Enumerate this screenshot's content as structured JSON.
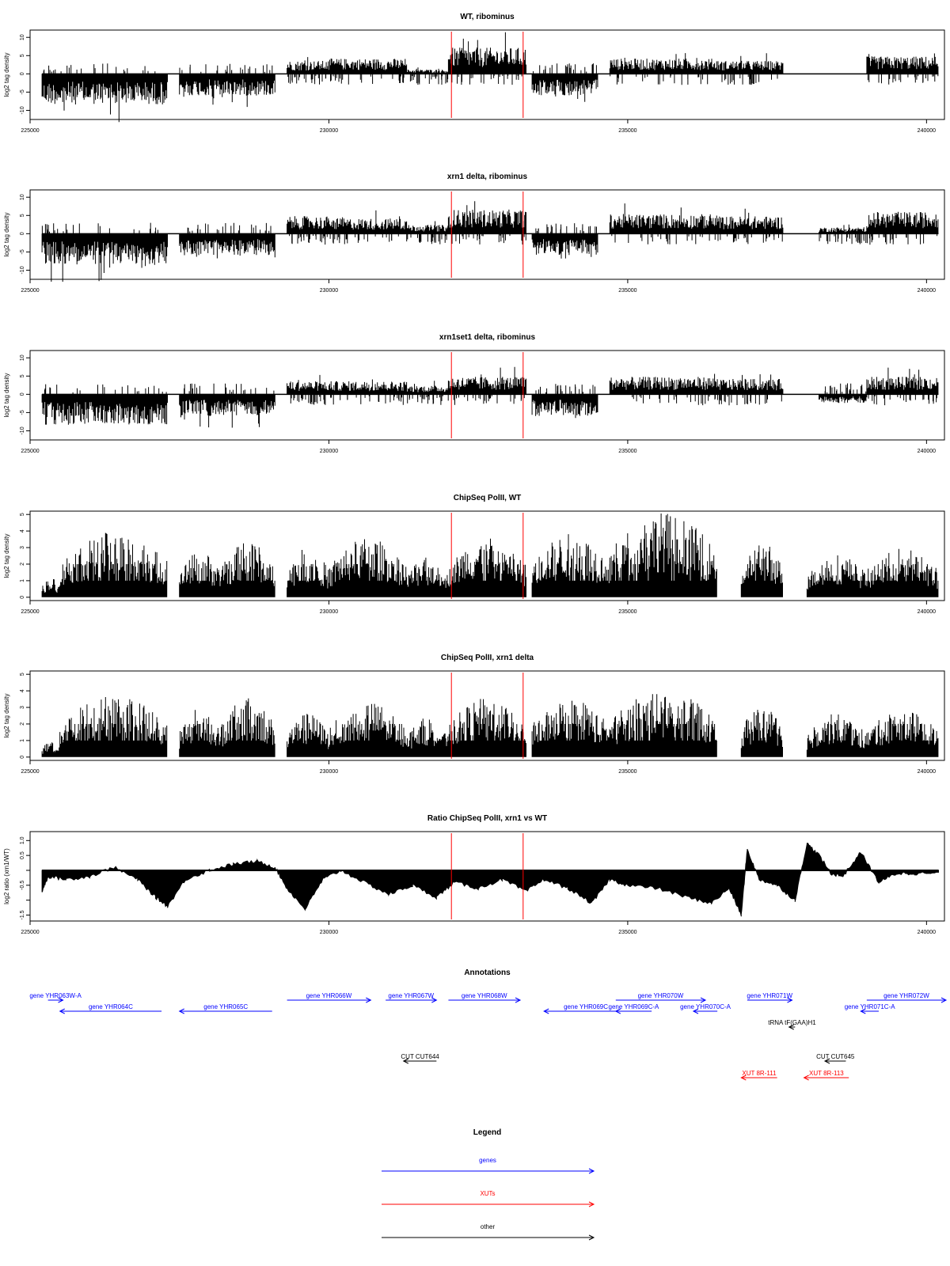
{
  "colors": {
    "marker": "#ff0000",
    "gene": "#0000ff",
    "xut": "#ff0000",
    "other": "#000000",
    "data": "#000000",
    "frame": "#000000"
  },
  "markers": [
    232050,
    233250
  ],
  "chart_data": [
    {
      "type": "bar",
      "title": "WT, ribominus",
      "ylabel": "log2 tag density",
      "xlim": [
        225000,
        240300
      ],
      "ylim": [
        -12.5,
        12
      ],
      "yticks": [
        -10,
        -5,
        0,
        5,
        10
      ],
      "xticks": [
        225000,
        230000,
        235000,
        240000
      ],
      "segments": [
        [
          225200,
          227300,
          -7
        ],
        [
          227500,
          229100,
          -5
        ],
        [
          229300,
          230000,
          3
        ],
        [
          230000,
          231300,
          3.5
        ],
        [
          231300,
          232000,
          1
        ],
        [
          232000,
          233300,
          6
        ],
        [
          233400,
          234500,
          -5
        ],
        [
          234700,
          236500,
          3.5
        ],
        [
          236500,
          237600,
          3
        ],
        [
          239000,
          240200,
          4
        ]
      ]
    },
    {
      "type": "bar",
      "title": "xrn1 delta, ribominus",
      "ylabel": "log2 tag density",
      "xlim": [
        225000,
        240300
      ],
      "ylim": [
        -12.5,
        12
      ],
      "yticks": [
        -10,
        -5,
        0,
        5,
        10
      ],
      "xticks": [
        225000,
        230000,
        235000,
        240000
      ],
      "segments": [
        [
          225200,
          227300,
          -7
        ],
        [
          227500,
          229100,
          -5
        ],
        [
          229300,
          230000,
          4
        ],
        [
          230000,
          231300,
          3.5
        ],
        [
          231300,
          232000,
          2
        ],
        [
          232000,
          233300,
          5.5
        ],
        [
          233400,
          234500,
          -5
        ],
        [
          234700,
          236500,
          4.5
        ],
        [
          236500,
          237600,
          4
        ],
        [
          238200,
          239000,
          1.5
        ],
        [
          239000,
          240200,
          5
        ]
      ]
    },
    {
      "type": "bar",
      "title": "xrn1set1 delta, ribominus",
      "ylabel": "log2 tag density",
      "xlim": [
        225000,
        240300
      ],
      "ylim": [
        -12.5,
        12
      ],
      "yticks": [
        -10,
        -5,
        0,
        5,
        10
      ],
      "xticks": [
        225000,
        230000,
        235000,
        240000
      ],
      "segments": [
        [
          225200,
          227300,
          -7
        ],
        [
          227500,
          229100,
          -5
        ],
        [
          229300,
          230000,
          3
        ],
        [
          230000,
          231300,
          3
        ],
        [
          231300,
          232000,
          2
        ],
        [
          232000,
          233300,
          4
        ],
        [
          233400,
          234500,
          -5
        ],
        [
          234700,
          236500,
          4
        ],
        [
          236500,
          237600,
          3.5
        ],
        [
          238200,
          239000,
          -2
        ],
        [
          239000,
          240200,
          4
        ]
      ]
    },
    {
      "type": "bar",
      "title": "ChipSeq PolII, WT",
      "ylabel": "log2 tag density",
      "xlim": [
        225000,
        240300
      ],
      "ylim": [
        -0.2,
        5.2
      ],
      "yticks": [
        0,
        1,
        2,
        3,
        4,
        5
      ],
      "xticks": [
        225000,
        230000,
        235000,
        240000
      ],
      "segments": [
        [
          225200,
          225500,
          1
        ],
        [
          225500,
          227300,
          3.3
        ],
        [
          227500,
          228200,
          2.3
        ],
        [
          228200,
          229100,
          2.8
        ],
        [
          229300,
          230000,
          2.5
        ],
        [
          230000,
          231300,
          3
        ],
        [
          231300,
          232000,
          2
        ],
        [
          232000,
          233300,
          3
        ],
        [
          233400,
          234700,
          3.2
        ],
        [
          234700,
          236500,
          4.3
        ],
        [
          236900,
          237600,
          2.8
        ],
        [
          238000,
          239000,
          2.2
        ],
        [
          239000,
          240200,
          2.5
        ]
      ]
    },
    {
      "type": "bar",
      "title": "ChipSeq PolII, xrn1 delta",
      "ylabel": "log2 tag density",
      "xlim": [
        225000,
        240300
      ],
      "ylim": [
        -0.2,
        5.2
      ],
      "yticks": [
        0,
        1,
        2,
        3,
        4,
        5
      ],
      "xticks": [
        225000,
        230000,
        235000,
        240000
      ],
      "segments": [
        [
          225200,
          225500,
          0.8
        ],
        [
          225500,
          227300,
          3.2
        ],
        [
          227500,
          228200,
          2.5
        ],
        [
          228200,
          229100,
          3
        ],
        [
          229300,
          230000,
          2.2
        ],
        [
          230000,
          231300,
          2.8
        ],
        [
          231300,
          232000,
          2
        ],
        [
          232000,
          233300,
          3
        ],
        [
          233400,
          234700,
          3
        ],
        [
          234700,
          236500,
          3.4
        ],
        [
          236900,
          237600,
          2.6
        ],
        [
          238000,
          239000,
          2.2
        ],
        [
          239000,
          240200,
          2.4
        ]
      ]
    },
    {
      "type": "area",
      "title": "Ratio ChipSeq PolII, xrn1 vs WT",
      "ylabel": "log2 ratio (xrn1/WT)",
      "xlim": [
        225000,
        240300
      ],
      "ylim": [
        -1.7,
        1.3
      ],
      "yticks": [
        -1.5,
        -1,
        -0.5,
        0,
        0.5,
        1
      ],
      "ytick_labels": [
        "-1.5",
        "",
        "-0.5",
        "",
        "0.5",
        "1.0"
      ],
      "xticks": [
        225000,
        230000,
        235000,
        240000
      ],
      "x": [
        225200,
        225300,
        225600,
        226000,
        226400,
        226800,
        227100,
        227300,
        227600,
        228000,
        228400,
        228800,
        229100,
        229300,
        229600,
        229900,
        230200,
        230600,
        231000,
        231400,
        231800,
        232100,
        232500,
        232900,
        233300,
        233600,
        234000,
        234400,
        234700,
        235000,
        235500,
        236000,
        236400,
        236700,
        236900,
        237000,
        237200,
        237500,
        237800,
        238000,
        238200,
        238400,
        238600,
        238900,
        239200,
        239500,
        239800,
        240200
      ],
      "values": [
        -0.7,
        -0.2,
        -0.3,
        -0.2,
        0.1,
        -0.3,
        -0.9,
        -1.2,
        -0.3,
        0,
        0.2,
        0.3,
        0.1,
        -0.6,
        -1.3,
        -0.3,
        0,
        -0.4,
        -0.8,
        -0.5,
        -0.9,
        -0.4,
        -0.6,
        -0.3,
        -0.7,
        -0.3,
        -0.6,
        -1.1,
        -0.3,
        -0.5,
        -0.6,
        -0.9,
        -1.1,
        -0.6,
        -1.5,
        0.7,
        -0.3,
        -0.5,
        -1,
        0.9,
        0.5,
        -0.1,
        -0.2,
        0.6,
        -0.4,
        -0.1,
        -0.1,
        -0.1
      ]
    }
  ],
  "annotations": {
    "title": "Annotations",
    "genes": [
      {
        "label": "gene YHR063W-A",
        "dir": 1,
        "start": 225300,
        "end": 225550,
        "row": 0
      },
      {
        "label": "gene YHR064C",
        "dir": -1,
        "start": 225500,
        "end": 227200,
        "row": 1
      },
      {
        "label": "gene YHR065C",
        "dir": -1,
        "start": 227500,
        "end": 229050,
        "row": 1
      },
      {
        "label": "gene YHR066W",
        "dir": 1,
        "start": 229300,
        "end": 230700,
        "row": 0
      },
      {
        "label": "gene YHR067W",
        "dir": 1,
        "start": 230950,
        "end": 231800,
        "row": 0
      },
      {
        "label": "gene YHR068W",
        "dir": 1,
        "start": 232000,
        "end": 233200,
        "row": 0
      },
      {
        "label": "gene YHR069C",
        "dir": -1,
        "start": 233600,
        "end": 235000,
        "row": 1
      },
      {
        "label": "gene YHR069C-A",
        "dir": -1,
        "start": 234800,
        "end": 235400,
        "row": 1
      },
      {
        "label": "gene YHR070W",
        "dir": 1,
        "start": 234800,
        "end": 236300,
        "row": 0
      },
      {
        "label": "gene YHR070C-A",
        "dir": -1,
        "start": 236100,
        "end": 236500,
        "row": 1
      },
      {
        "label": "gene YHR071W",
        "dir": 1,
        "start": 237000,
        "end": 237750,
        "row": 0
      },
      {
        "label": "gene YHR071C-A",
        "dir": -1,
        "start": 238900,
        "end": 239200,
        "row": 1
      },
      {
        "label": "gene YHR072W",
        "dir": 1,
        "start": 239000,
        "end": 240800,
        "row": 0
      }
    ],
    "others": [
      {
        "label": "tRNA tF(GAA)H1",
        "dir": -1,
        "start": 237700,
        "end": 237800,
        "row": 2
      },
      {
        "label": "CUT CUT644",
        "dir": -1,
        "start": 231250,
        "end": 231800,
        "row": 3
      },
      {
        "label": "CUT CUT645",
        "dir": -1,
        "start": 238300,
        "end": 238650,
        "row": 3
      }
    ],
    "xuts": [
      {
        "label": "XUT 8R-111",
        "dir": -1,
        "start": 236900,
        "end": 237500,
        "row": 4
      },
      {
        "label": "XUT 8R-113",
        "dir": -1,
        "start": 237950,
        "end": 238700,
        "row": 4
      }
    ]
  },
  "legend": {
    "title": "Legend",
    "items": [
      {
        "label": "genes",
        "kind": "gene"
      },
      {
        "label": "XUTs",
        "kind": "xut"
      },
      {
        "label": "other",
        "kind": "other"
      }
    ]
  }
}
